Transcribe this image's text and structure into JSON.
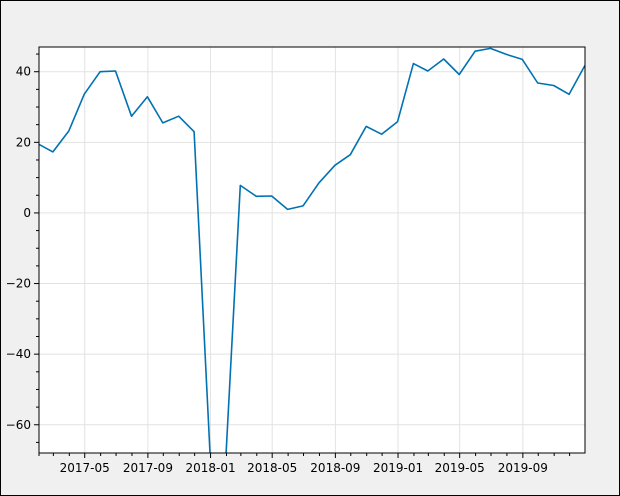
{
  "chart_data": {
    "type": "line",
    "title": "",
    "xlabel": "",
    "ylabel": "",
    "x_tick_labels": [
      "2017-05",
      "2017-09",
      "2018-01",
      "2018-05",
      "2018-09",
      "2019-01",
      "2019-05",
      "2019-09"
    ],
    "x_ticks": [
      "2017-05-01",
      "2017-09-01",
      "2018-01-01",
      "2018-05-01",
      "2018-09-01",
      "2019-01-01",
      "2019-05-01",
      "2019-09-01"
    ],
    "xlim": [
      "2017-02-01",
      "2019-12-31"
    ],
    "y_ticks": [
      -60,
      -40,
      -20,
      0,
      20,
      40
    ],
    "ylim": [
      -68,
      47
    ],
    "grid": true,
    "series": [
      {
        "color": "#0072b2",
        "x": [
          "2017-01-31",
          "2017-02-28",
          "2017-03-31",
          "2017-04-30",
          "2017-05-31",
          "2017-06-30",
          "2017-07-31",
          "2017-08-31",
          "2017-09-30",
          "2017-10-31",
          "2017-11-30",
          "2017-12-31",
          "2018-01-31",
          "2018-02-28",
          "2018-03-31",
          "2018-04-30",
          "2018-05-31",
          "2018-06-30",
          "2018-07-31",
          "2018-08-31",
          "2018-09-30",
          "2018-10-31",
          "2018-11-30",
          "2018-12-31",
          "2019-01-31",
          "2019-02-28",
          "2019-03-31",
          "2019-04-30",
          "2019-05-31",
          "2019-06-30",
          "2019-07-31",
          "2019-08-31",
          "2019-09-30",
          "2019-10-31",
          "2019-11-30",
          "2019-12-31"
        ],
        "values": [
          19.5,
          17.3,
          23.2,
          33.6,
          40.0,
          40.2,
          27.4,
          32.9,
          25.5,
          27.4,
          23.0,
          -68.0,
          -68.5,
          7.8,
          4.7,
          4.8,
          1.0,
          2.0,
          8.5,
          13.5,
          16.5,
          24.5,
          22.3,
          25.8,
          42.3,
          40.2,
          43.6,
          39.2,
          45.8,
          46.6,
          44.9,
          43.5,
          36.8,
          36.1,
          33.6,
          41.8
        ]
      }
    ]
  }
}
